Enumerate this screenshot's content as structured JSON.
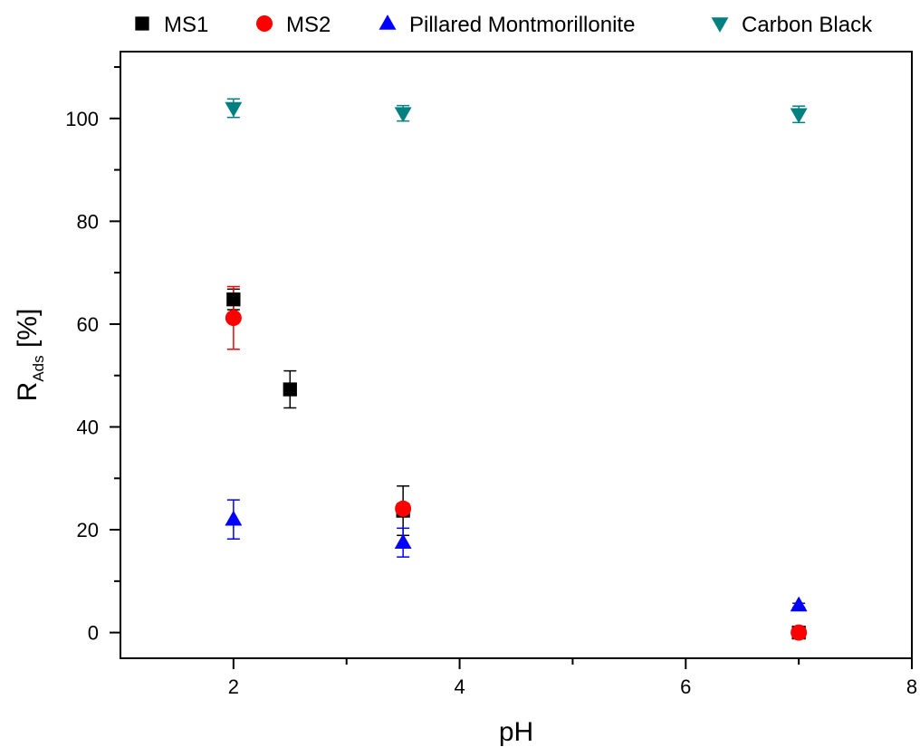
{
  "chart_data": {
    "type": "scatter",
    "xlabel": "pH",
    "ylabel_main": "R",
    "ylabel_sub": "Ads",
    "ylabel_unit": " [%]",
    "xlim": [
      1,
      8
    ],
    "ylim": [
      -5,
      113
    ],
    "xticks": [
      2,
      4,
      6,
      8
    ],
    "xticks_minor": [
      3,
      5,
      7
    ],
    "yticks": [
      0,
      20,
      40,
      60,
      80,
      100
    ],
    "grid": false,
    "legend_position": "top",
    "series": [
      {
        "name": "MS1",
        "marker": "square",
        "color": "#000000",
        "points": [
          {
            "x": 2.0,
            "y": 64.8,
            "err": 2.0
          },
          {
            "x": 2.5,
            "y": 47.3,
            "err": 3.6
          },
          {
            "x": 3.5,
            "y": 23.7,
            "err": 4.8
          },
          {
            "x": 7.0,
            "y": 0.0,
            "err": 0.3
          }
        ]
      },
      {
        "name": "MS2",
        "marker": "circle",
        "color": "#ff0000",
        "points": [
          {
            "x": 2.0,
            "y": 61.2,
            "err": 6.1
          },
          {
            "x": 3.5,
            "y": 24.1,
            "err": 1.0
          },
          {
            "x": 7.0,
            "y": 0.0,
            "err": 0.3
          }
        ]
      },
      {
        "name": "Pillared Montmorillonite",
        "marker": "triangle-up",
        "color": "#0000ff",
        "points": [
          {
            "x": 2.0,
            "y": 22.0,
            "err": 3.8
          },
          {
            "x": 3.5,
            "y": 17.5,
            "err": 2.8
          },
          {
            "x": 7.0,
            "y": 5.3,
            "err": 0.4
          }
        ]
      },
      {
        "name": "Carbon Black",
        "marker": "triangle-down",
        "color": "#008080",
        "points": [
          {
            "x": 2.0,
            "y": 102.0,
            "err": 1.8
          },
          {
            "x": 3.5,
            "y": 101.0,
            "err": 1.5
          },
          {
            "x": 7.0,
            "y": 100.8,
            "err": 1.6
          }
        ]
      }
    ]
  }
}
